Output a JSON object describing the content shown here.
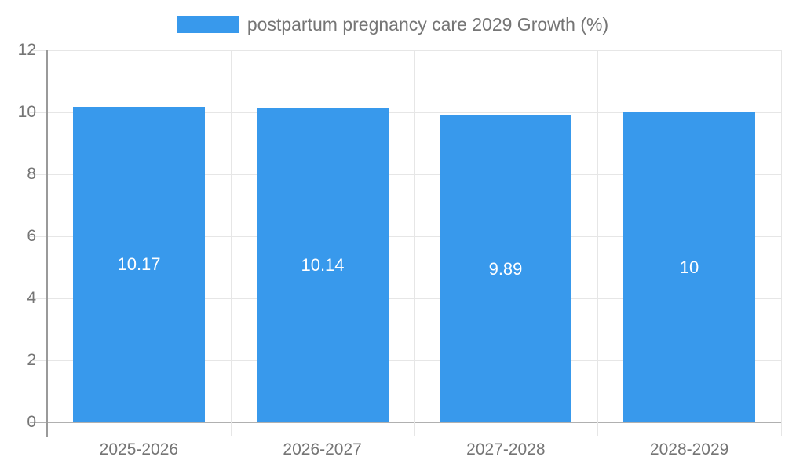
{
  "legend": {
    "label": "postpartum pregnancy care 2029 Growth (%)"
  },
  "colors": {
    "bar": "#3899EC",
    "bar_label": "#ffffff",
    "axis_text": "#757575",
    "gridline": "#e6e6e6",
    "baseline": "#b0b0b0",
    "y_axis_line": "#9a9a9a"
  },
  "chart_data": {
    "type": "bar",
    "categories": [
      "2025-2026",
      "2026-2027",
      "2027-2028",
      "2028-2029"
    ],
    "values": [
      10.17,
      10.14,
      9.89,
      10
    ],
    "value_labels": [
      "10.17",
      "10.14",
      "9.89",
      "10"
    ],
    "series_label": "postpartum pregnancy care 2029 Growth (%)",
    "title": "",
    "xlabel": "",
    "ylabel": "",
    "ylim": [
      0,
      12
    ],
    "yticks": [
      0,
      2,
      4,
      6,
      8,
      10,
      12
    ],
    "grid": "horizontal gridlines with left tick extensions, vertical category separators, right plot border",
    "legend_position": "top-center",
    "bar_labels_inside": "vertically centered, white"
  }
}
